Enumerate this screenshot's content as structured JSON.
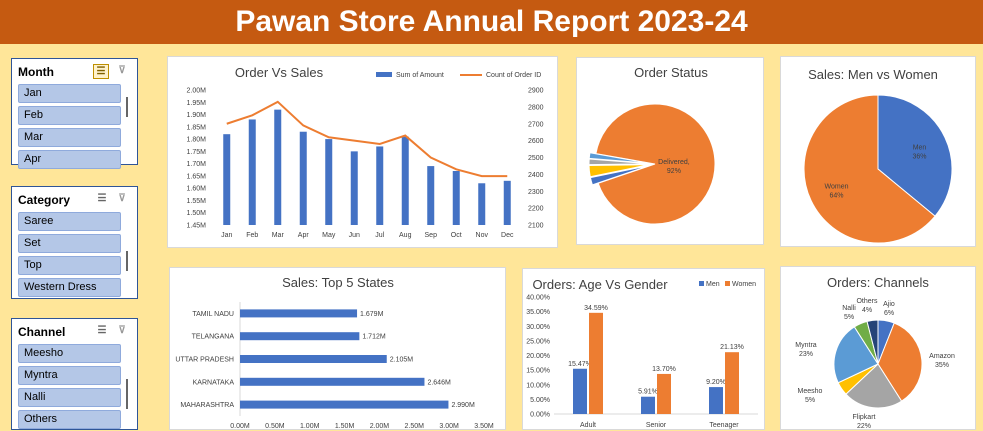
{
  "title": "Pawan Store Annual Report 2023-24",
  "slicers": [
    {
      "header": "Month",
      "items": [
        "Jan",
        "Feb",
        "Mar",
        "Apr"
      ]
    },
    {
      "header": "Category",
      "items": [
        "Saree",
        "Set",
        "Top",
        "Western Dress"
      ]
    },
    {
      "header": "Channel",
      "items": [
        "Meesho",
        "Myntra",
        "Nalli",
        "Others"
      ]
    }
  ],
  "colors": {
    "orange": "#ed7d31",
    "blue": "#4472c4",
    "gray": "#a5a5a5",
    "yellow": "#ffc000",
    "lightblue": "#5b9bd5",
    "green": "#70ad47",
    "navy": "#264478",
    "title_bg": "#c55a11",
    "background": "#ffe699"
  },
  "chart_data": [
    {
      "type": "bar",
      "title": "Order Vs Sales",
      "categories": [
        "Jan",
        "Feb",
        "Mar",
        "Apr",
        "May",
        "Jun",
        "Jul",
        "Aug",
        "Sep",
        "Oct",
        "Nov",
        "Dec"
      ],
      "series": [
        {
          "name": "Sum of Amount",
          "type": "bar",
          "axis": "left",
          "values": [
            1.82,
            1.88,
            1.92,
            1.83,
            1.8,
            1.75,
            1.77,
            1.81,
            1.69,
            1.67,
            1.62,
            1.63
          ]
        },
        {
          "name": "Count of Order ID",
          "type": "line",
          "axis": "right",
          "values": [
            2700,
            2750,
            2830,
            2690,
            2620,
            2600,
            2580,
            2630,
            2500,
            2430,
            2390,
            2390
          ]
        }
      ],
      "y_left": {
        "min": 1.45,
        "max": 2.0,
        "ticks": [
          "1.45M",
          "1.50M",
          "1.55M",
          "1.60M",
          "1.65M",
          "1.70M",
          "1.75M",
          "1.80M",
          "1.85M",
          "1.90M",
          "1.95M",
          "2.00M"
        ]
      },
      "y_right": {
        "min": 2100,
        "max": 2900,
        "ticks": [
          "2100",
          "2200",
          "2300",
          "2400",
          "2500",
          "2600",
          "2700",
          "2800",
          "2900"
        ]
      },
      "legend": "top-right"
    },
    {
      "type": "pie",
      "title": "Order Status",
      "slices": [
        {
          "label": "Delivered",
          "value": 92,
          "display": "Delivered,\n92%",
          "color": "#ed7d31"
        },
        {
          "label": "",
          "value": 2,
          "color": "#4472c4"
        },
        {
          "label": "",
          "value": 3,
          "color": "#ffc000"
        },
        {
          "label": "",
          "value": 1.5,
          "color": "#a5a5a5"
        },
        {
          "label": "",
          "value": 1.5,
          "color": "#5b9bd5"
        }
      ]
    },
    {
      "type": "pie",
      "title": "Sales: Men vs Women",
      "slices": [
        {
          "label": "Men",
          "value": 36,
          "display": "Men\n36%",
          "color": "#4472c4"
        },
        {
          "label": "Women",
          "value": 64,
          "display": "Women\n64%",
          "color": "#ed7d31"
        }
      ]
    },
    {
      "type": "bar",
      "orientation": "horizontal",
      "title": "Sales: Top 5 States",
      "categories": [
        "TAMIL NADU",
        "TELANGANA",
        "UTTAR PRADESH",
        "KARNATAKA",
        "MAHARASHTRA"
      ],
      "values": [
        1.679,
        1.712,
        2.105,
        2.646,
        2.99
      ],
      "value_labels": [
        "1.679M",
        "1.712M",
        "2.105M",
        "2.646M",
        "2.990M"
      ],
      "x_ticks": [
        "0.00M",
        "0.50M",
        "1.00M",
        "1.50M",
        "2.00M",
        "2.50M",
        "3.00M",
        "3.50M"
      ],
      "xlim": [
        0,
        3.5
      ]
    },
    {
      "type": "bar",
      "title": "Orders: Age Vs Gender",
      "categories": [
        "Adult",
        "Senior",
        "Teenager"
      ],
      "series": [
        {
          "name": "Men",
          "values": [
            15.47,
            5.91,
            9.2
          ],
          "labels": [
            "15.47%",
            "5.91%",
            "9.20%"
          ],
          "color": "#4472c4"
        },
        {
          "name": "Women",
          "values": [
            34.59,
            13.7,
            21.13
          ],
          "labels": [
            "34.59%",
            "13.70%",
            "21.13%"
          ],
          "color": "#ed7d31"
        }
      ],
      "y_ticks": [
        "0.00%",
        "5.00%",
        "10.00%",
        "15.00%",
        "20.00%",
        "25.00%",
        "30.00%",
        "35.00%",
        "40.00%"
      ],
      "ylim": [
        0,
        40
      ],
      "legend": "top-right"
    },
    {
      "type": "pie",
      "title": "Orders: Channels",
      "slices": [
        {
          "label": "Ajio",
          "value": 6,
          "display": "Ajio\n6%",
          "color": "#4472c4"
        },
        {
          "label": "Amazon",
          "value": 35,
          "display": "Amazon\n35%",
          "color": "#ed7d31"
        },
        {
          "label": "Flipkart",
          "value": 22,
          "display": "Flipkart\n22%",
          "color": "#a5a5a5"
        },
        {
          "label": "Meesho",
          "value": 5,
          "display": "Meesho\n5%",
          "color": "#ffc000"
        },
        {
          "label": "Myntra",
          "value": 23,
          "display": "Myntra\n23%",
          "color": "#5b9bd5"
        },
        {
          "label": "Nalli",
          "value": 5,
          "display": "Nalli\n5%",
          "color": "#70ad47"
        },
        {
          "label": "Others",
          "value": 4,
          "display": "Others\n4%",
          "color": "#264478"
        }
      ]
    }
  ]
}
